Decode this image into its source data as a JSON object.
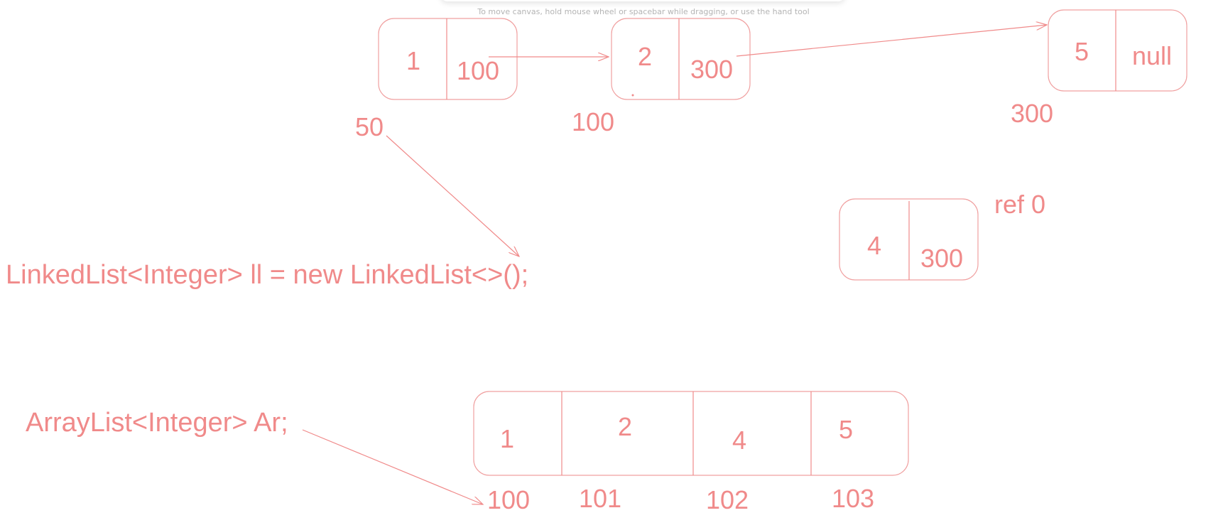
{
  "canvas_hint": "To move canvas, hold mouse wheel or spacebar while dragging, or use the hand tool",
  "linked_list": {
    "nodes": [
      {
        "value": "1",
        "next": "100",
        "address": "50"
      },
      {
        "value": "2",
        "next": "300",
        "address": "100"
      },
      {
        "value": "5",
        "next": "null",
        "address": "300"
      },
      {
        "value": "4",
        "next": "300",
        "address": "ref 0"
      }
    ],
    "declaration": "LinkedList<Integer> ll = new LinkedList<>();"
  },
  "array_list": {
    "declaration": "ArrayList<Integer> Ar;",
    "cells": [
      {
        "value": "1",
        "address": "100"
      },
      {
        "value": "2",
        "address": "101"
      },
      {
        "value": "4",
        "address": "102"
      },
      {
        "value": "5",
        "address": "103"
      }
    ]
  },
  "colors": {
    "ink": "#f08a8a",
    "border": "#f0a0a0",
    "hint": "#b4b4b4"
  }
}
